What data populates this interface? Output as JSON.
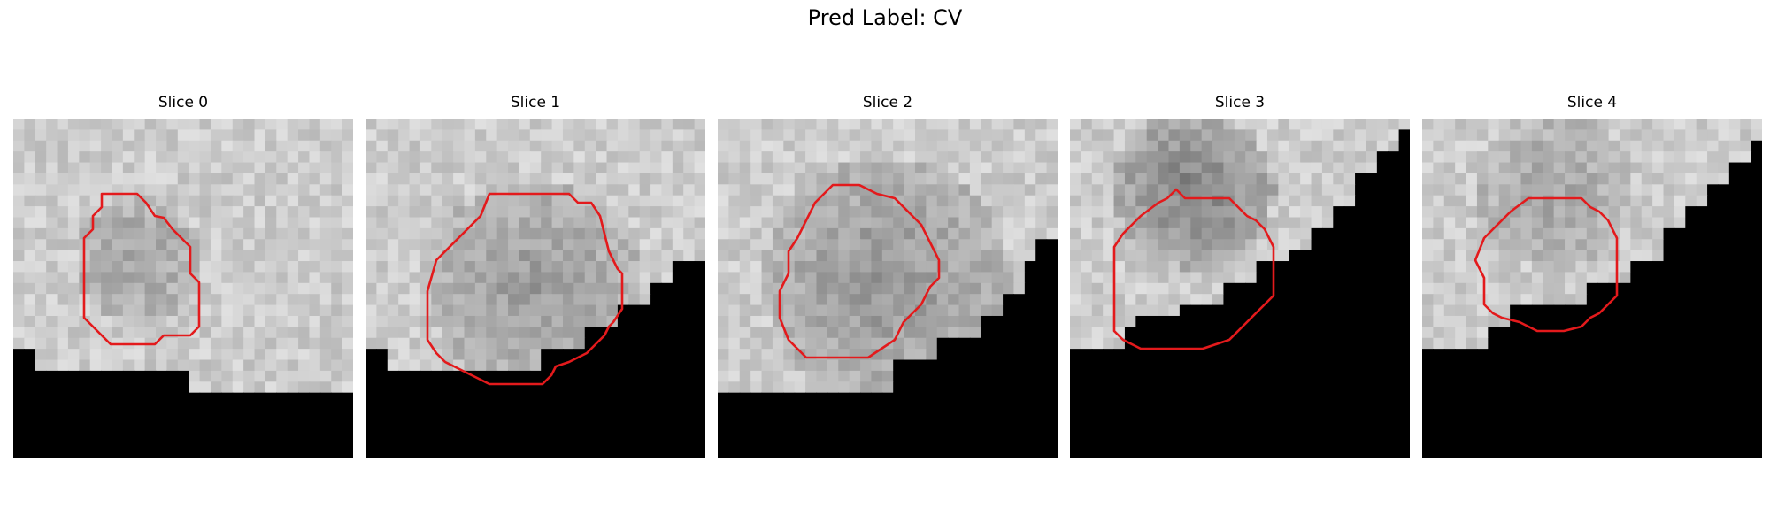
{
  "figure": {
    "title": "Pred Label: CV"
  },
  "slices": [
    {
      "label": "Slice 0"
    },
    {
      "label": "Slice 1"
    },
    {
      "label": "Slice 2"
    },
    {
      "label": "Slice 3"
    },
    {
      "label": "Slice 4"
    }
  ],
  "colors": {
    "contour": "#e31a1c",
    "background": "#000000"
  }
}
